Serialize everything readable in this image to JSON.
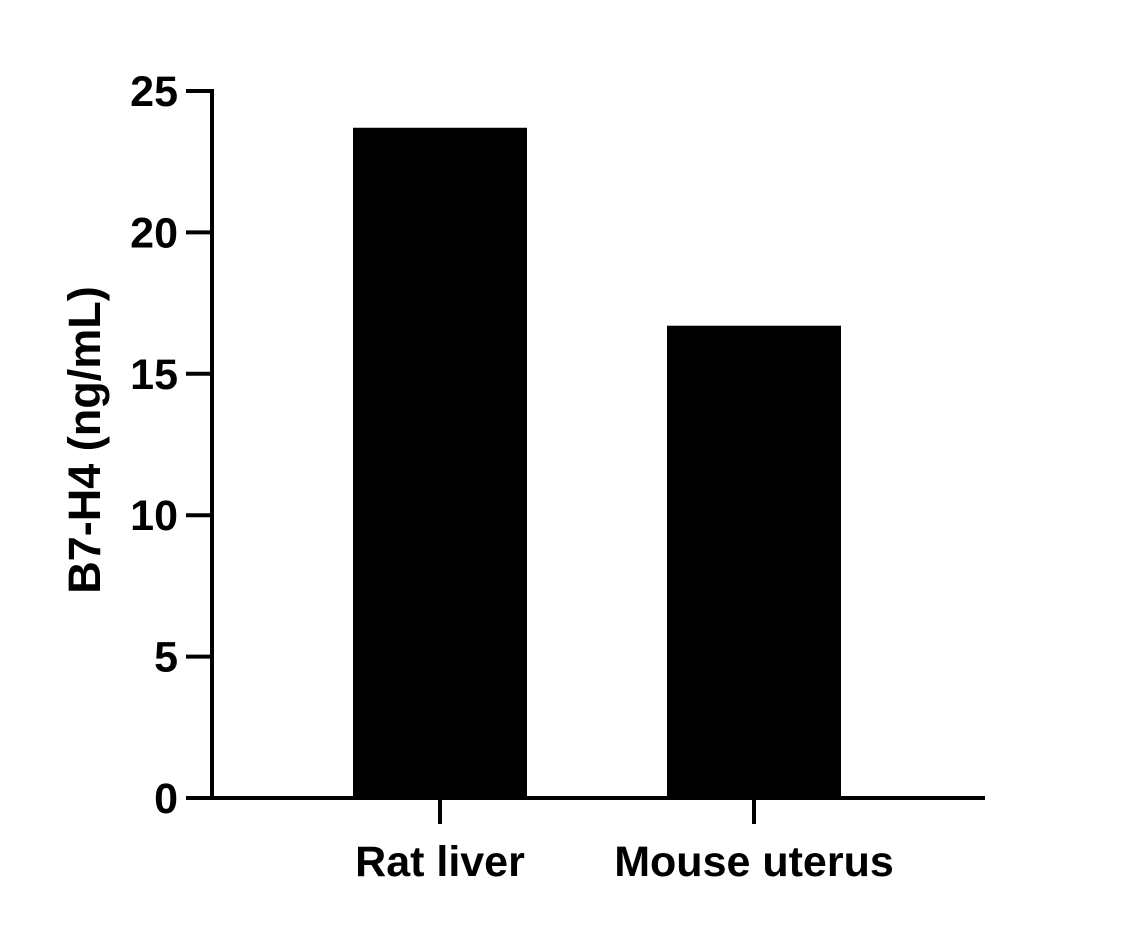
{
  "chart_data": {
    "type": "bar",
    "title": "",
    "xlabel": "",
    "ylabel": "B7-H4 (ng/mL)",
    "categories": [
      "Rat liver",
      "Mouse uterus"
    ],
    "values": [
      23.7,
      16.7
    ],
    "ylim": [
      0,
      25
    ],
    "yticks": [
      0,
      5,
      10,
      15,
      20,
      25
    ],
    "ytick_labels": [
      "0",
      "5",
      "10",
      "15",
      "20",
      "25"
    ],
    "grid": false,
    "legend": "none",
    "bar_color": "#000000",
    "axis_color": "#000000"
  }
}
